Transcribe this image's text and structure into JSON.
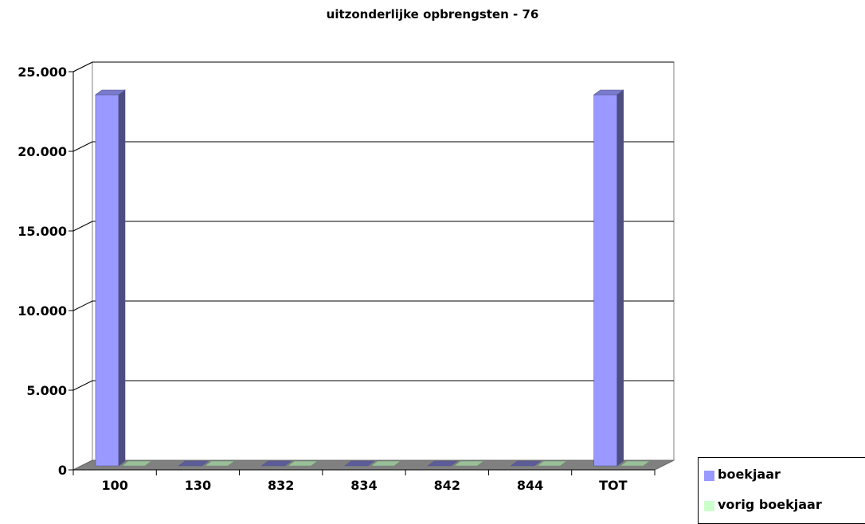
{
  "chart_data": {
    "type": "bar",
    "title": "uitzonderlijke opbrengsten - 76",
    "xlabel": "",
    "ylabel": "",
    "categories": [
      "100",
      "130",
      "832",
      "834",
      "842",
      "844",
      "TOT"
    ],
    "series": [
      {
        "name": "boekjaar",
        "values": [
          23500,
          0,
          0,
          0,
          0,
          0,
          23500
        ],
        "color": "#9999ff"
      },
      {
        "name": "vorig boekjaar",
        "values": [
          0,
          0,
          0,
          0,
          0,
          0,
          0
        ],
        "color": "#ccffcc"
      }
    ],
    "ylim": [
      0,
      25000
    ],
    "yticks": [
      0,
      5000,
      10000,
      15000,
      20000,
      25000
    ],
    "ytick_labels": [
      "0",
      "5.000",
      "10.000",
      "15.000",
      "20.000",
      "25.000"
    ],
    "grid": true,
    "legend_position": "bottom-right",
    "three_d": true,
    "colors": {
      "wall": "#ffffff",
      "floor": "#808080",
      "gridline": "#000000"
    }
  }
}
